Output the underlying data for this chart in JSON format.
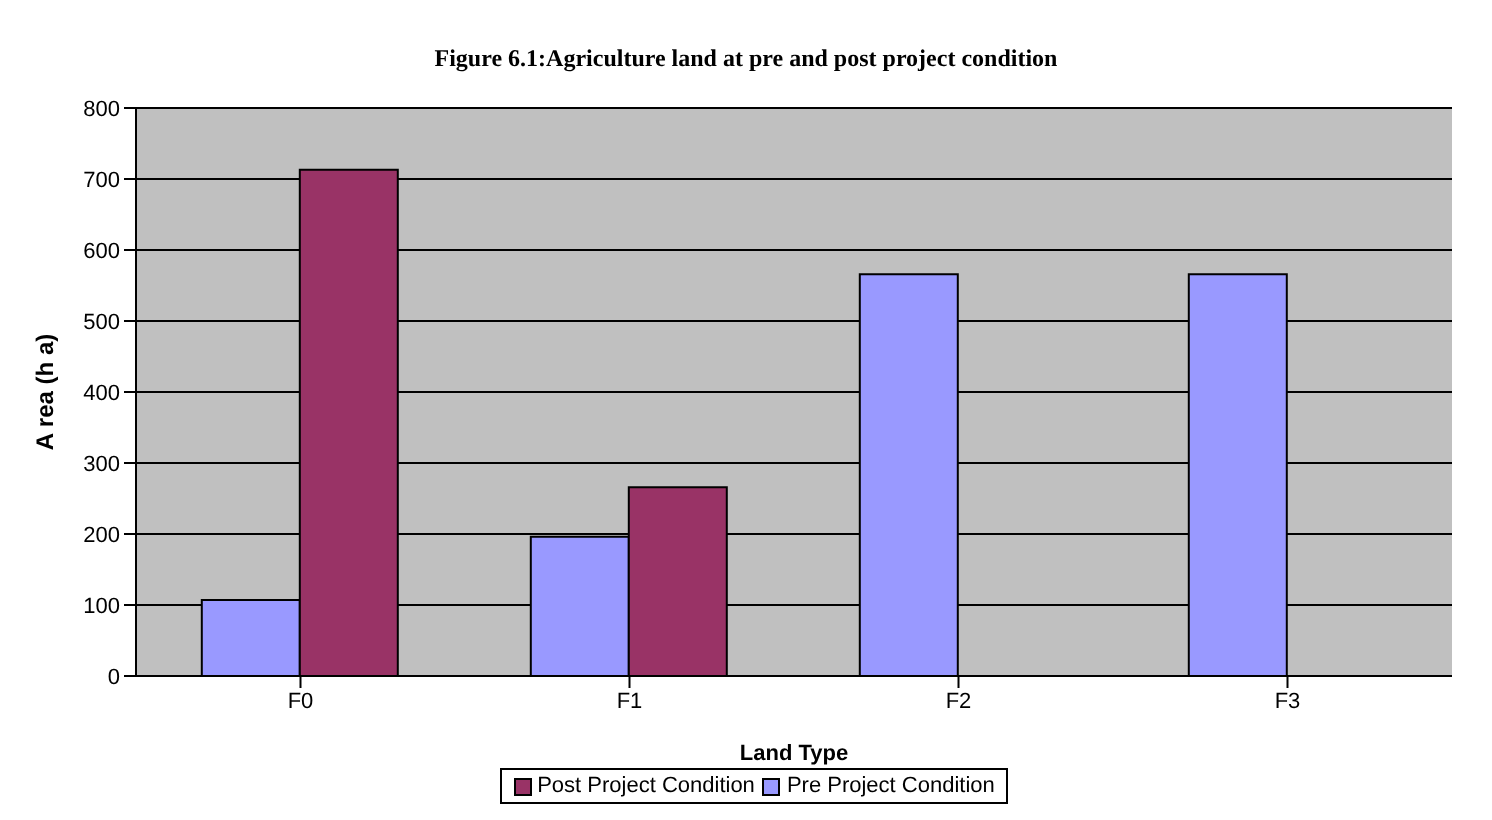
{
  "chart_data": {
    "type": "bar",
    "title": "Figure 6.1:Agriculture land at pre and post project condition",
    "xlabel": "Land Type",
    "ylabel": "A rea  (h a)",
    "categories": [
      "F0",
      "F1",
      "F2",
      "F3"
    ],
    "series": [
      {
        "name": "Pre Project Condition",
        "color": "#9999ff",
        "values": [
          107,
          196,
          566,
          566
        ]
      },
      {
        "name": "Post Project Condition",
        "color": "#993366",
        "values": [
          713,
          266,
          0,
          0
        ]
      }
    ],
    "ylim": [
      0,
      800
    ],
    "yticks": [
      0,
      100,
      200,
      300,
      400,
      500,
      600,
      700,
      800
    ],
    "grid": "y",
    "legend": "bottom"
  }
}
